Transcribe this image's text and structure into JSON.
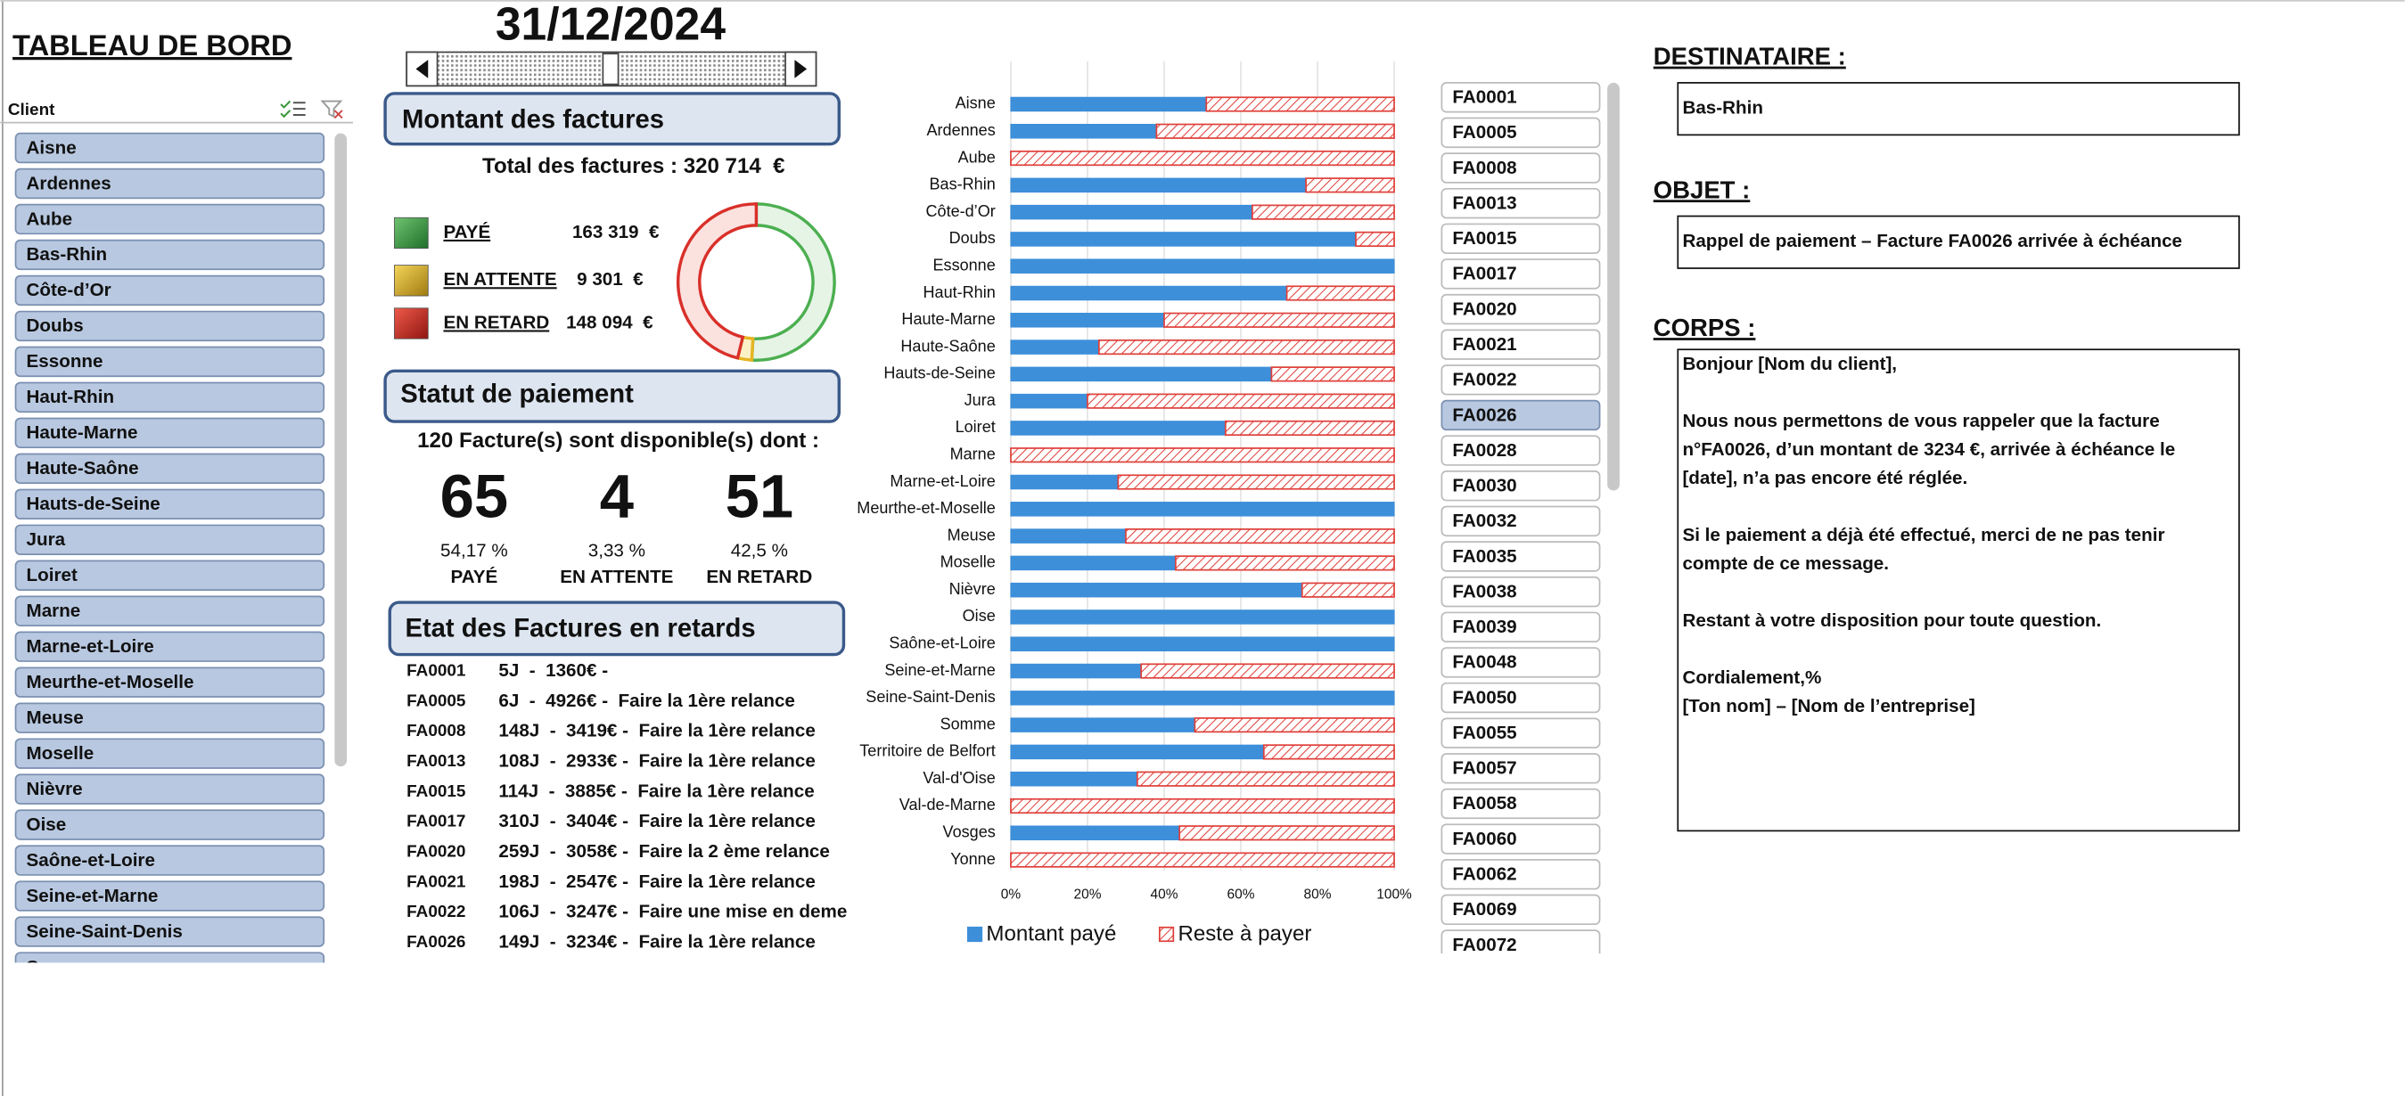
{
  "header": {
    "title": "TABLEAU DE BORD",
    "date": "31/12/2024"
  },
  "client_slicer": {
    "label": "Client",
    "items": [
      "Aisne",
      "Ardennes",
      "Aube",
      "Bas-Rhin",
      "Côte-d’Or",
      "Doubs",
      "Essonne",
      "Haut-Rhin",
      "Haute-Marne",
      "Haute-Saône",
      "Hauts-de-Seine",
      "Jura",
      "Loiret",
      "Marne",
      "Marne-et-Loire",
      "Meurthe-et-Moselle",
      "Meuse",
      "Moselle",
      "Nièvre",
      "Oise",
      "Saône-et-Loire",
      "Seine-et-Marne",
      "Seine-Saint-Denis",
      "Somme"
    ]
  },
  "montant": {
    "title": "Montant des factures",
    "total": "Total des factures : 320 714  €"
  },
  "statut": {
    "title": "Statut de paiement",
    "summary": "120 Facture(s) sont disponible(s) dont :",
    "items": [
      {
        "count": 65,
        "percent": "54,17 %",
        "label": "PAYÉ"
      },
      {
        "count": 4,
        "percent": "3,33 %",
        "label": "EN ATTENTE"
      },
      {
        "count": 51,
        "percent": "42,5 %",
        "label": "EN RETARD"
      }
    ]
  },
  "retards": {
    "title": "Etat des Factures en retards",
    "rows": [
      {
        "id": "FA0001",
        "text": "5J  -  1360€ -"
      },
      {
        "id": "FA0005",
        "text": "6J  -  4926€ -  Faire la 1ère relance"
      },
      {
        "id": "FA0008",
        "text": "148J  -  3419€ -  Faire la 1ère relance"
      },
      {
        "id": "FA0013",
        "text": "108J  -  2933€ -  Faire la 1ère relance"
      },
      {
        "id": "FA0015",
        "text": "114J  -  3885€ -  Faire la 1ère relance"
      },
      {
        "id": "FA0017",
        "text": "310J  -  3404€ -  Faire la 1ère relance"
      },
      {
        "id": "FA0020",
        "text": "259J  -  3058€ -  Faire la 2 ème relance"
      },
      {
        "id": "FA0021",
        "text": "198J  -  2547€ -  Faire la 1ère relance"
      },
      {
        "id": "FA0022",
        "text": "106J  -  3247€ -  Faire une mise en deme"
      },
      {
        "id": "FA0026",
        "text": "149J  -  3234€ -  Faire la 1ère relance"
      }
    ]
  },
  "invoice_slicer": {
    "items": [
      "FA0001",
      "FA0005",
      "FA0008",
      "FA0013",
      "FA0015",
      "FA0017",
      "FA0020",
      "FA0021",
      "FA0022",
      "FA0026",
      "FA0028",
      "FA0030",
      "FA0032",
      "FA0035",
      "FA0038",
      "FA0039",
      "FA0048",
      "FA0050",
      "FA0055",
      "FA0057",
      "FA0058",
      "FA0060",
      "FA0062",
      "FA0069",
      "FA0072"
    ],
    "selected_index": 9
  },
  "message": {
    "recipient_label": "DESTINATAIRE :",
    "recipient": "Bas-Rhin",
    "subject_label": "OBJET :",
    "subject": "Rappel de paiement – Facture FA0026 arrivée à échéance",
    "body_label": "CORPS :",
    "body": [
      [
        "Bonjour [Nom du client],"
      ],
      [
        "Nous nous permettons de vous rappeler que la facture",
        "n°FA0026, d’un montant de 3234 €, arrivée à échéance le",
        "[date], n’a pas encore été réglée."
      ],
      [
        "Si le paiement a déjà été effectué, merci de ne pas tenir",
        "compte de ce message."
      ],
      [
        "Restant à votre disposition pour toute question."
      ],
      [
        "Cordialement,%",
        "[Ton nom] – [Nom de l’entreprise]"
      ]
    ]
  },
  "chart_data": [
    {
      "type": "bar",
      "orientation": "horizontal",
      "stacked": true,
      "categories": [
        "Aisne",
        "Ardennes",
        "Aube",
        "Bas-Rhin",
        "Côte-d’Or",
        "Doubs",
        "Essonne",
        "Haut-Rhin",
        "Haute-Marne",
        "Haute-Saône",
        "Hauts-de-Seine",
        "Jura",
        "Loiret",
        "Marne",
        "Marne-et-Loire",
        "Meurthe-et-Moselle",
        "Meuse",
        "Moselle",
        "Nièvre",
        "Oise",
        "Saône-et-Loire",
        "Seine-et-Marne",
        "Seine-Saint-Denis",
        "Somme",
        "Territoire de Belfort",
        "Val-d'Oise",
        "Val-de-Marne",
        "Vosges",
        "Yonne"
      ],
      "series": [
        {
          "name": "Montant payé",
          "color": "#3d8fd9",
          "values": [
            51,
            38,
            0,
            77,
            63,
            90,
            100,
            72,
            40,
            23,
            68,
            20,
            56,
            0,
            28,
            100,
            30,
            43,
            76,
            100,
            100,
            34,
            100,
            48,
            66,
            33,
            0,
            44,
            0
          ]
        },
        {
          "name": "Reste à payer",
          "color": "#e0403a",
          "pattern": "hatch",
          "values": [
            49,
            62,
            100,
            23,
            37,
            10,
            0,
            28,
            60,
            77,
            32,
            80,
            44,
            100,
            72,
            0,
            70,
            57,
            24,
            0,
            0,
            66,
            0,
            52,
            34,
            67,
            100,
            56,
            100
          ]
        }
      ],
      "xlim": [
        0,
        100
      ],
      "xticks": [
        {
          "value": 0,
          "label": "0%"
        },
        {
          "value": 20,
          "label": "20%"
        },
        {
          "value": 40,
          "label": "40%"
        },
        {
          "value": 60,
          "label": "60%"
        },
        {
          "value": 80,
          "label": "80%"
        },
        {
          "value": 100,
          "label": "100%"
        }
      ],
      "grid": true,
      "legend": "bottom"
    },
    {
      "type": "donut",
      "categories": [
        "PAYÉ",
        "EN ATTENTE",
        "EN RETARD"
      ],
      "values": [
        163319,
        9301,
        148094
      ],
      "value_labels": [
        "163 319  €",
        "9 301  €",
        "148 094  €"
      ],
      "colors": [
        "#4caf50",
        "#e6b422",
        "#d9302a"
      ]
    }
  ]
}
